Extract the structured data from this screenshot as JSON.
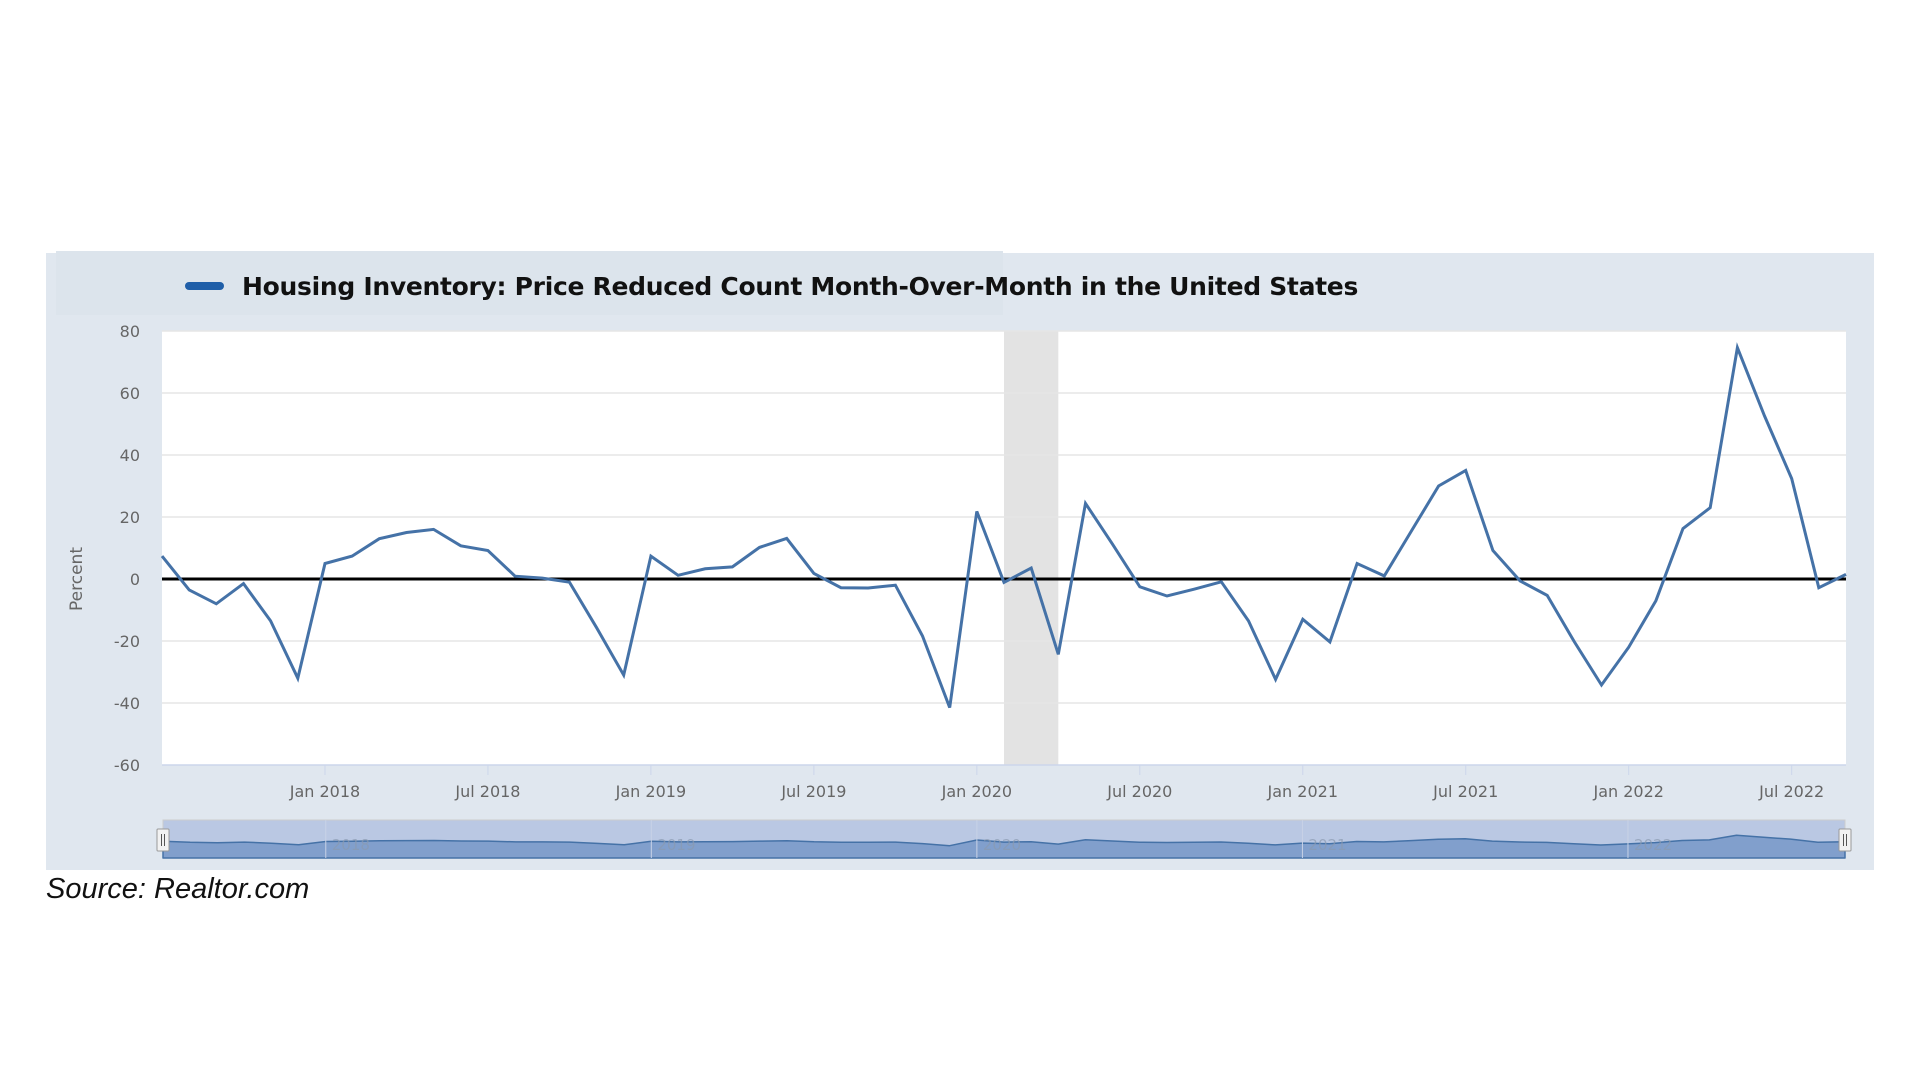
{
  "legend": {
    "label": "Housing Inventory: Price Reduced Count Month-Over-Month in the United States",
    "swatch_color": "#1f5ea8"
  },
  "source": "Source: Realtor.com",
  "colors": {
    "line": "#4572a7",
    "zero_line": "#000000",
    "recession": "#e3e3e3",
    "navigator_fill": "#819fcc",
    "navigator_mask": "#bac8e3"
  },
  "navigator": {
    "labels": [
      "2018",
      "2019",
      "2020",
      "2021",
      "2022"
    ]
  },
  "chart_data": {
    "type": "line",
    "title": "Housing Inventory: Price Reduced Count Month-Over-Month in the United States",
    "xlabel": "",
    "ylabel": "Percent",
    "ylim": [
      -60,
      80
    ],
    "yticks": [
      80,
      60,
      40,
      20,
      0,
      -20,
      -40,
      -60
    ],
    "ytick_labels": [
      "80",
      "60",
      "40",
      "20",
      "0",
      "-20",
      "-40",
      "-60"
    ],
    "xlim": [
      "2017-07",
      "2022-09"
    ],
    "xticks": [
      "2018-01",
      "2018-07",
      "2019-01",
      "2019-07",
      "2020-01",
      "2020-07",
      "2021-01",
      "2021-07",
      "2022-01",
      "2022-07"
    ],
    "xtick_labels": [
      "Jan 2018",
      "Jul 2018",
      "Jan 2019",
      "Jul 2019",
      "Jan 2020",
      "Jul 2020",
      "Jan 2021",
      "Jul 2021",
      "Jan 2022",
      "Jul 2022"
    ],
    "grid": true,
    "legend_position": "top-left",
    "recession_shading": [
      {
        "start": "2020-02",
        "end": "2020-04"
      }
    ],
    "reference_line": 0,
    "x": [
      "2017-07",
      "2017-08",
      "2017-09",
      "2017-10",
      "2017-11",
      "2017-12",
      "2018-01",
      "2018-02",
      "2018-03",
      "2018-04",
      "2018-05",
      "2018-06",
      "2018-07",
      "2018-08",
      "2018-09",
      "2018-10",
      "2018-11",
      "2018-12",
      "2019-01",
      "2019-02",
      "2019-03",
      "2019-04",
      "2019-05",
      "2019-06",
      "2019-07",
      "2019-08",
      "2019-09",
      "2019-10",
      "2019-11",
      "2019-12",
      "2020-01",
      "2020-02",
      "2020-03",
      "2020-04",
      "2020-05",
      "2020-06",
      "2020-07",
      "2020-08",
      "2020-09",
      "2020-10",
      "2020-11",
      "2020-12",
      "2021-01",
      "2021-02",
      "2021-03",
      "2021-04",
      "2021-05",
      "2021-06",
      "2021-07",
      "2021-08",
      "2021-09",
      "2021-10",
      "2021-11",
      "2021-12",
      "2022-01",
      "2022-02",
      "2022-03",
      "2022-04",
      "2022-05",
      "2022-06",
      "2022-07",
      "2022-08",
      "2022-09"
    ],
    "series": [
      {
        "name": "Housing Inventory: Price Reduced Count Month-Over-Month in the United States",
        "values": [
          7.4,
          -3.5,
          -8.0,
          -1.5,
          -13.5,
          -32.0,
          5.0,
          7.4,
          13.0,
          15.0,
          16.0,
          10.7,
          9.2,
          0.9,
          0.3,
          -1.0,
          -15.7,
          -31.0,
          7.4,
          1.2,
          3.3,
          3.9,
          10.2,
          13.1,
          1.8,
          -2.8,
          -2.9,
          -2.0,
          -18.4,
          -41.5,
          21.8,
          -1.1,
          3.5,
          -24.3,
          24.4,
          11.2,
          -2.5,
          -5.5,
          -3.3,
          -0.9,
          -13.5,
          -32.4,
          -13.0,
          -20.3,
          5.0,
          1.0,
          15.5,
          30.0,
          35.0,
          9.2,
          -0.6,
          -5.3,
          -20.3,
          -34.2,
          -22.0,
          -7.0,
          16.3,
          23.0,
          74.6,
          52.6,
          32.4,
          -2.8,
          1.5
        ]
      }
    ]
  }
}
